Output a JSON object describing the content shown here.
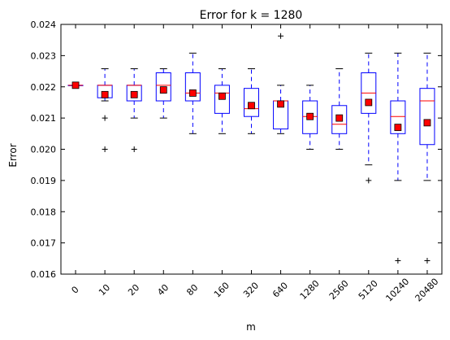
{
  "chart_data": {
    "type": "boxplot",
    "title": "Error for k = 1280",
    "xlabel": "m",
    "ylabel": "Error",
    "ylim": [
      0.016,
      0.024
    ],
    "yticks": [
      "0.016",
      "0.017",
      "0.018",
      "0.019",
      "0.020",
      "0.021",
      "0.022",
      "0.023",
      "0.024"
    ],
    "categories": [
      "0",
      "10",
      "20",
      "40",
      "80",
      "160",
      "320",
      "640",
      "1280",
      "2560",
      "5120",
      "10240",
      "20480"
    ],
    "boxes": [
      {
        "whisker_low": 0.02205,
        "q1": 0.02205,
        "median": 0.02205,
        "q3": 0.02205,
        "whisker_high": 0.02205,
        "mean": 0.02205,
        "outliers": []
      },
      {
        "whisker_low": 0.02155,
        "q1": 0.02165,
        "median": 0.02205,
        "q3": 0.02205,
        "whisker_high": 0.02258,
        "mean": 0.02175,
        "outliers": [
          0.021,
          0.02
        ]
      },
      {
        "whisker_low": 0.021,
        "q1": 0.02155,
        "median": 0.02205,
        "q3": 0.02205,
        "whisker_high": 0.02258,
        "mean": 0.02175,
        "outliers": [
          0.02
        ]
      },
      {
        "whisker_low": 0.021,
        "q1": 0.02155,
        "median": 0.02205,
        "q3": 0.02245,
        "whisker_high": 0.02258,
        "mean": 0.0219,
        "outliers": []
      },
      {
        "whisker_low": 0.0205,
        "q1": 0.02155,
        "median": 0.0218,
        "q3": 0.02245,
        "whisker_high": 0.02308,
        "mean": 0.0218,
        "outliers": []
      },
      {
        "whisker_low": 0.0205,
        "q1": 0.02115,
        "median": 0.0218,
        "q3": 0.02205,
        "whisker_high": 0.02258,
        "mean": 0.0217,
        "outliers": []
      },
      {
        "whisker_low": 0.0205,
        "q1": 0.02105,
        "median": 0.0213,
        "q3": 0.02195,
        "whisker_high": 0.02258,
        "mean": 0.0214,
        "outliers": []
      },
      {
        "whisker_low": 0.0205,
        "q1": 0.02065,
        "median": 0.02155,
        "q3": 0.02155,
        "whisker_high": 0.02205,
        "mean": 0.02145,
        "outliers": [
          0.02363
        ]
      },
      {
        "whisker_low": 0.02,
        "q1": 0.0205,
        "median": 0.02105,
        "q3": 0.02155,
        "whisker_high": 0.02205,
        "mean": 0.02105,
        "outliers": []
      },
      {
        "whisker_low": 0.02,
        "q1": 0.0205,
        "median": 0.0208,
        "q3": 0.0214,
        "whisker_high": 0.02258,
        "mean": 0.021,
        "outliers": []
      },
      {
        "whisker_low": 0.0195,
        "q1": 0.02115,
        "median": 0.0218,
        "q3": 0.02245,
        "whisker_high": 0.02308,
        "mean": 0.0215,
        "outliers": [
          0.019
        ]
      },
      {
        "whisker_low": 0.019,
        "q1": 0.0205,
        "median": 0.02105,
        "q3": 0.02155,
        "whisker_high": 0.02308,
        "mean": 0.0207,
        "outliers": [
          0.01643
        ]
      },
      {
        "whisker_low": 0.019,
        "q1": 0.02015,
        "median": 0.02155,
        "q3": 0.02195,
        "whisker_high": 0.02308,
        "mean": 0.02085,
        "outliers": [
          0.01643
        ]
      }
    ],
    "colors": {
      "box": "#0000ff",
      "median": "#ff0000",
      "mean_fill": "#ff0000",
      "mean_edge": "#000000",
      "outlier": "#000000"
    },
    "grid": false,
    "legend": "none"
  }
}
